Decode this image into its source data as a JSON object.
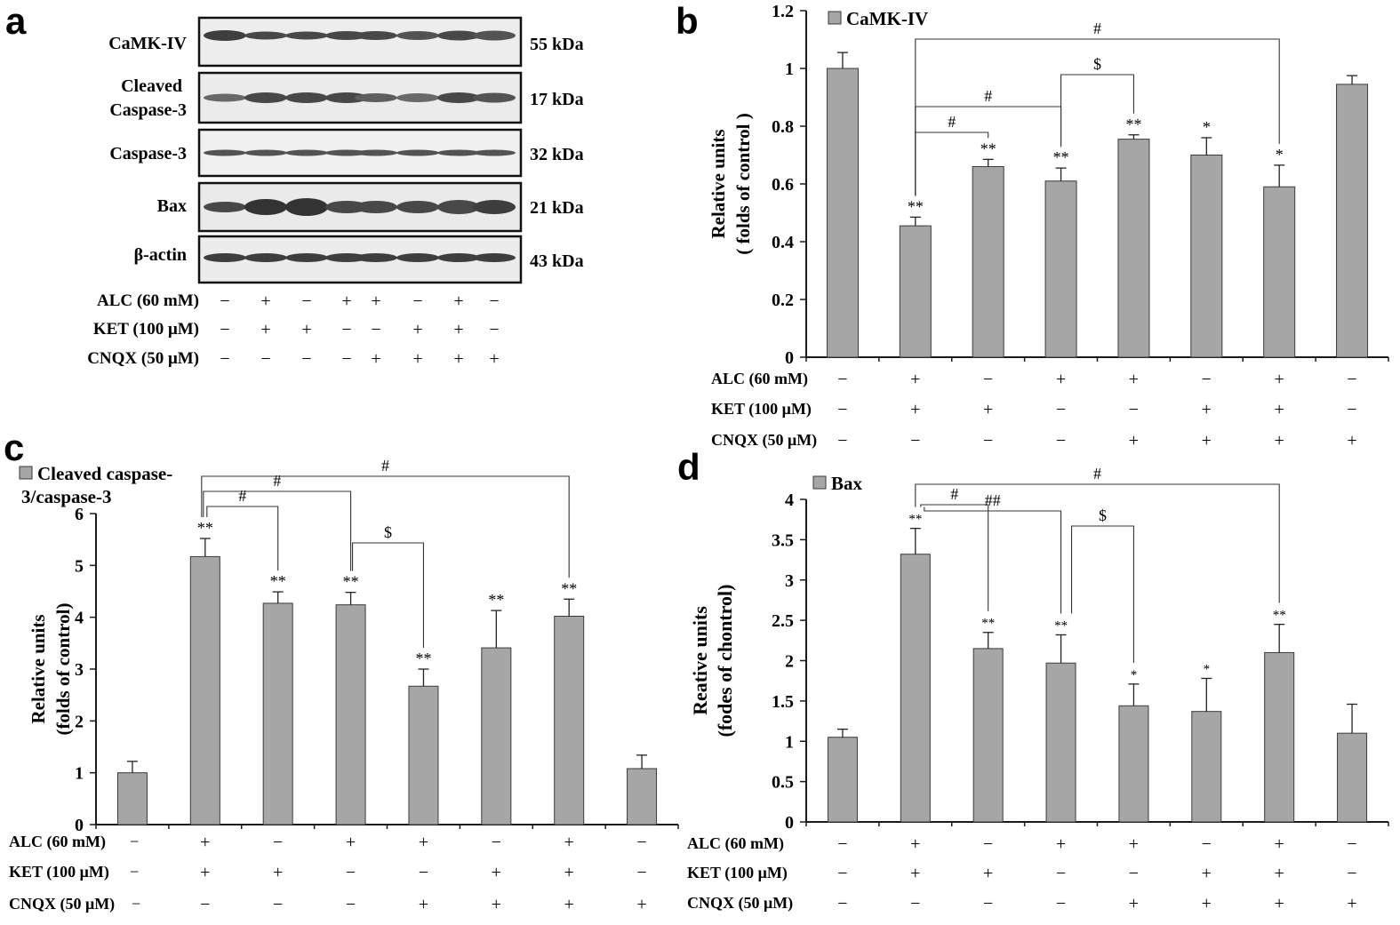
{
  "panel_a": {
    "letter": "a",
    "rows": [
      {
        "label": "CaMK-IV",
        "size": "55 kDa"
      },
      {
        "label": "Cleaved Caspase-3",
        "size": "17 kDa"
      },
      {
        "label": "Caspase-3",
        "size": "32 kDa"
      },
      {
        "label": "Bax",
        "size": "21 kDa"
      },
      {
        "label": "β-actin",
        "size": "43 kDa"
      }
    ],
    "conditions": [
      {
        "label": "ALC (60 mM)",
        "signs": [
          "−",
          "+",
          "−",
          "+",
          "+",
          "−",
          "+",
          "−"
        ]
      },
      {
        "label": "KET (100 μM)",
        "signs": [
          "−",
          "+",
          "+",
          "−",
          "−",
          "+",
          "+",
          "−"
        ]
      },
      {
        "label": "CNQX (50 μM)",
        "signs": [
          "−",
          "−",
          "−",
          "−",
          "+",
          "+",
          "+",
          "+"
        ]
      }
    ]
  },
  "chart_data": [
    {
      "panel": "b",
      "type": "bar",
      "legend": "CaMK-IV",
      "ylabel_line1": "Relative units",
      "ylabel_line2": "( folds of control )",
      "ylim": [
        0,
        1.2
      ],
      "yticks": [
        "0",
        "0.2",
        "0.4",
        "0.6",
        "0.8",
        "1",
        "1.2"
      ],
      "values": [
        1.0,
        0.455,
        0.66,
        0.61,
        0.755,
        0.7,
        0.59,
        0.945
      ],
      "errors": [
        0.055,
        0.03,
        0.025,
        0.045,
        0.015,
        0.06,
        0.075,
        0.03
      ],
      "stars": [
        "",
        "**",
        "**",
        "**",
        "**",
        "*",
        "*",
        ""
      ],
      "brackets": [
        {
          "from": 1,
          "to": 6,
          "label": "#"
        },
        {
          "from": 3,
          "to": 4,
          "label": "$"
        },
        {
          "from": 1,
          "to": 3,
          "label": "#"
        },
        {
          "from": 1,
          "to": 2,
          "label": "#"
        }
      ],
      "conditions": [
        {
          "label": "ALC (60 mM)",
          "signs": [
            "−",
            "+",
            "−",
            "+",
            "+",
            "−",
            "+",
            "−"
          ]
        },
        {
          "label": "KET (100 μM)",
          "signs": [
            "−",
            "+",
            "+",
            "−",
            "−",
            "+",
            "+",
            "−"
          ]
        },
        {
          "label": "CNQX (50 μM)",
          "signs": [
            "−",
            "−",
            "−",
            "−",
            "+",
            "+",
            "+",
            "+"
          ]
        }
      ]
    },
    {
      "panel": "c",
      "type": "bar",
      "legend_line1": "Cleaved caspase-",
      "legend_line2": "3/caspase-3",
      "ylabel_line1": "Relative units",
      "ylabel_line2": "(folds of  control)",
      "ylim": [
        0,
        6
      ],
      "yticks": [
        "0",
        "1",
        "2",
        "3",
        "4",
        "5",
        "6"
      ],
      "values": [
        1.0,
        5.17,
        4.27,
        4.24,
        2.67,
        3.41,
        4.02,
        1.08
      ],
      "errors": [
        0.22,
        0.35,
        0.22,
        0.24,
        0.33,
        0.72,
        0.33,
        0.26
      ],
      "stars": [
        "",
        "**",
        "**",
        "**",
        "**",
        "**",
        "**",
        ""
      ],
      "brackets": [
        {
          "from": 1,
          "to": 6,
          "label": "#"
        },
        {
          "from": 1,
          "to": 3,
          "label": "#"
        },
        {
          "from": 1,
          "to": 2,
          "label": "#"
        },
        {
          "from": 3,
          "to": 4,
          "label": "$"
        }
      ],
      "conditions": [
        {
          "label": "ALC (60 mM)",
          "signs": [
            "+",
            "−",
            "+",
            "+",
            "−",
            "+",
            "−"
          ]
        },
        {
          "label": "KET (100 μM)",
          "signs": [
            "+",
            "+",
            "−",
            "−",
            "+",
            "+",
            "−"
          ]
        },
        {
          "label": "CNQX (50 μM)",
          "signs": [
            "−",
            "−",
            "−",
            "+",
            "+",
            "+",
            "+"
          ]
        }
      ],
      "condition_suffix": "−"
    },
    {
      "panel": "d",
      "type": "bar",
      "legend": "Bax",
      "ylabel_line1": "Reative units",
      "ylabel_line2": "(fodes of chontrol)",
      "ylim": [
        0,
        4
      ],
      "yticks": [
        "0",
        "0.5",
        "1",
        "1.5",
        "2",
        "2.5",
        "3",
        "3.5",
        "4"
      ],
      "values": [
        1.05,
        3.32,
        2.15,
        1.97,
        1.44,
        1.37,
        2.1,
        1.1
      ],
      "errors": [
        0.1,
        0.32,
        0.2,
        0.35,
        0.27,
        0.41,
        0.35,
        0.36
      ],
      "stars": [
        "",
        "**",
        "**",
        "**",
        "*",
        "*",
        "**",
        ""
      ],
      "brackets": [
        {
          "from": 1,
          "to": 6,
          "label": "#"
        },
        {
          "from": 1,
          "to": 2,
          "label": "#"
        },
        {
          "from": 1,
          "to": 3,
          "label": "##"
        },
        {
          "from": 3,
          "to": 4,
          "label": "$"
        }
      ],
      "conditions": [
        {
          "label": "ALC (60 mM)",
          "signs": [
            "−",
            "+",
            "−",
            "+",
            "+",
            "−",
            "+",
            "−"
          ]
        },
        {
          "label": "KET (100 μM)",
          "signs": [
            "−",
            "+",
            "+",
            "−",
            "−",
            "+",
            "+",
            "−"
          ]
        },
        {
          "label": "CNQX (50 μM)",
          "signs": [
            "−",
            "−",
            "−",
            "−",
            "+",
            "+",
            "+",
            "+"
          ]
        }
      ]
    }
  ],
  "colors": {
    "bar": "#a6a6a6",
    "bar_edge": "#3a3a3a",
    "axis": "#1a1a1a",
    "blot_bg": "#ececec",
    "band": "#2b2b2b"
  }
}
